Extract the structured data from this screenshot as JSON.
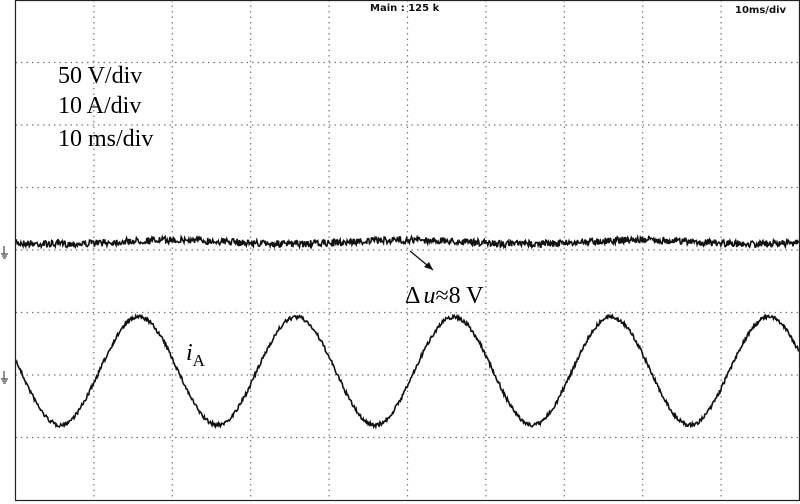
{
  "header": {
    "timebase": "Main : 125 k",
    "scale": "10ms/div"
  },
  "annotations": {
    "scales": [
      "50 V/div",
      "10 A/div",
      "10 ms/div"
    ],
    "ripple": {
      "symbol": "Δ",
      "variable": "u",
      "value": "≈8 V"
    },
    "current": {
      "variable": "i",
      "subscript": "A"
    }
  }
}
